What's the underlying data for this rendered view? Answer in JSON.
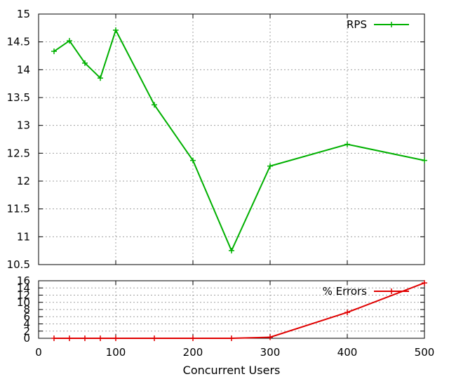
{
  "chart_data": [
    {
      "type": "line",
      "xlabel": "",
      "ylabel": "",
      "xlim": [
        0,
        500
      ],
      "ylim": [
        10.5,
        15
      ],
      "xticks": [
        0,
        100,
        200,
        300,
        400,
        500
      ],
      "yticks": [
        "10.5",
        "11",
        "11.5",
        "12",
        "12.5",
        "13",
        "13.5",
        "14",
        "14.5",
        "15"
      ],
      "show_x_tick_labels": false,
      "grid": true,
      "legend": "top-right",
      "series": [
        {
          "name": "RPS",
          "color": "#00b000",
          "x": [
            20,
            40,
            60,
            80,
            100,
            150,
            200,
            250,
            300,
            400,
            500
          ],
          "y": [
            14.33,
            14.52,
            14.12,
            13.85,
            14.71,
            13.37,
            12.37,
            10.75,
            12.27,
            12.66,
            12.37
          ]
        }
      ]
    },
    {
      "type": "line",
      "xlabel": "Concurrent Users",
      "ylabel": "",
      "xlim": [
        0,
        500
      ],
      "ylim": [
        0,
        16
      ],
      "xticks": [
        "0",
        "100",
        "200",
        "300",
        "400",
        "500"
      ],
      "yticks": [
        "0",
        "2",
        "4",
        "6",
        "8",
        "10",
        "12",
        "14",
        "16"
      ],
      "show_x_tick_labels": true,
      "grid": true,
      "legend": "top-right",
      "series": [
        {
          "name": "% Errors",
          "color": "#e00000",
          "x": [
            20,
            40,
            60,
            80,
            100,
            150,
            200,
            250,
            300,
            400,
            500
          ],
          "y": [
            0,
            0,
            0,
            0,
            0,
            0,
            0,
            0,
            0.3,
            7.2,
            15.4
          ]
        }
      ]
    }
  ]
}
